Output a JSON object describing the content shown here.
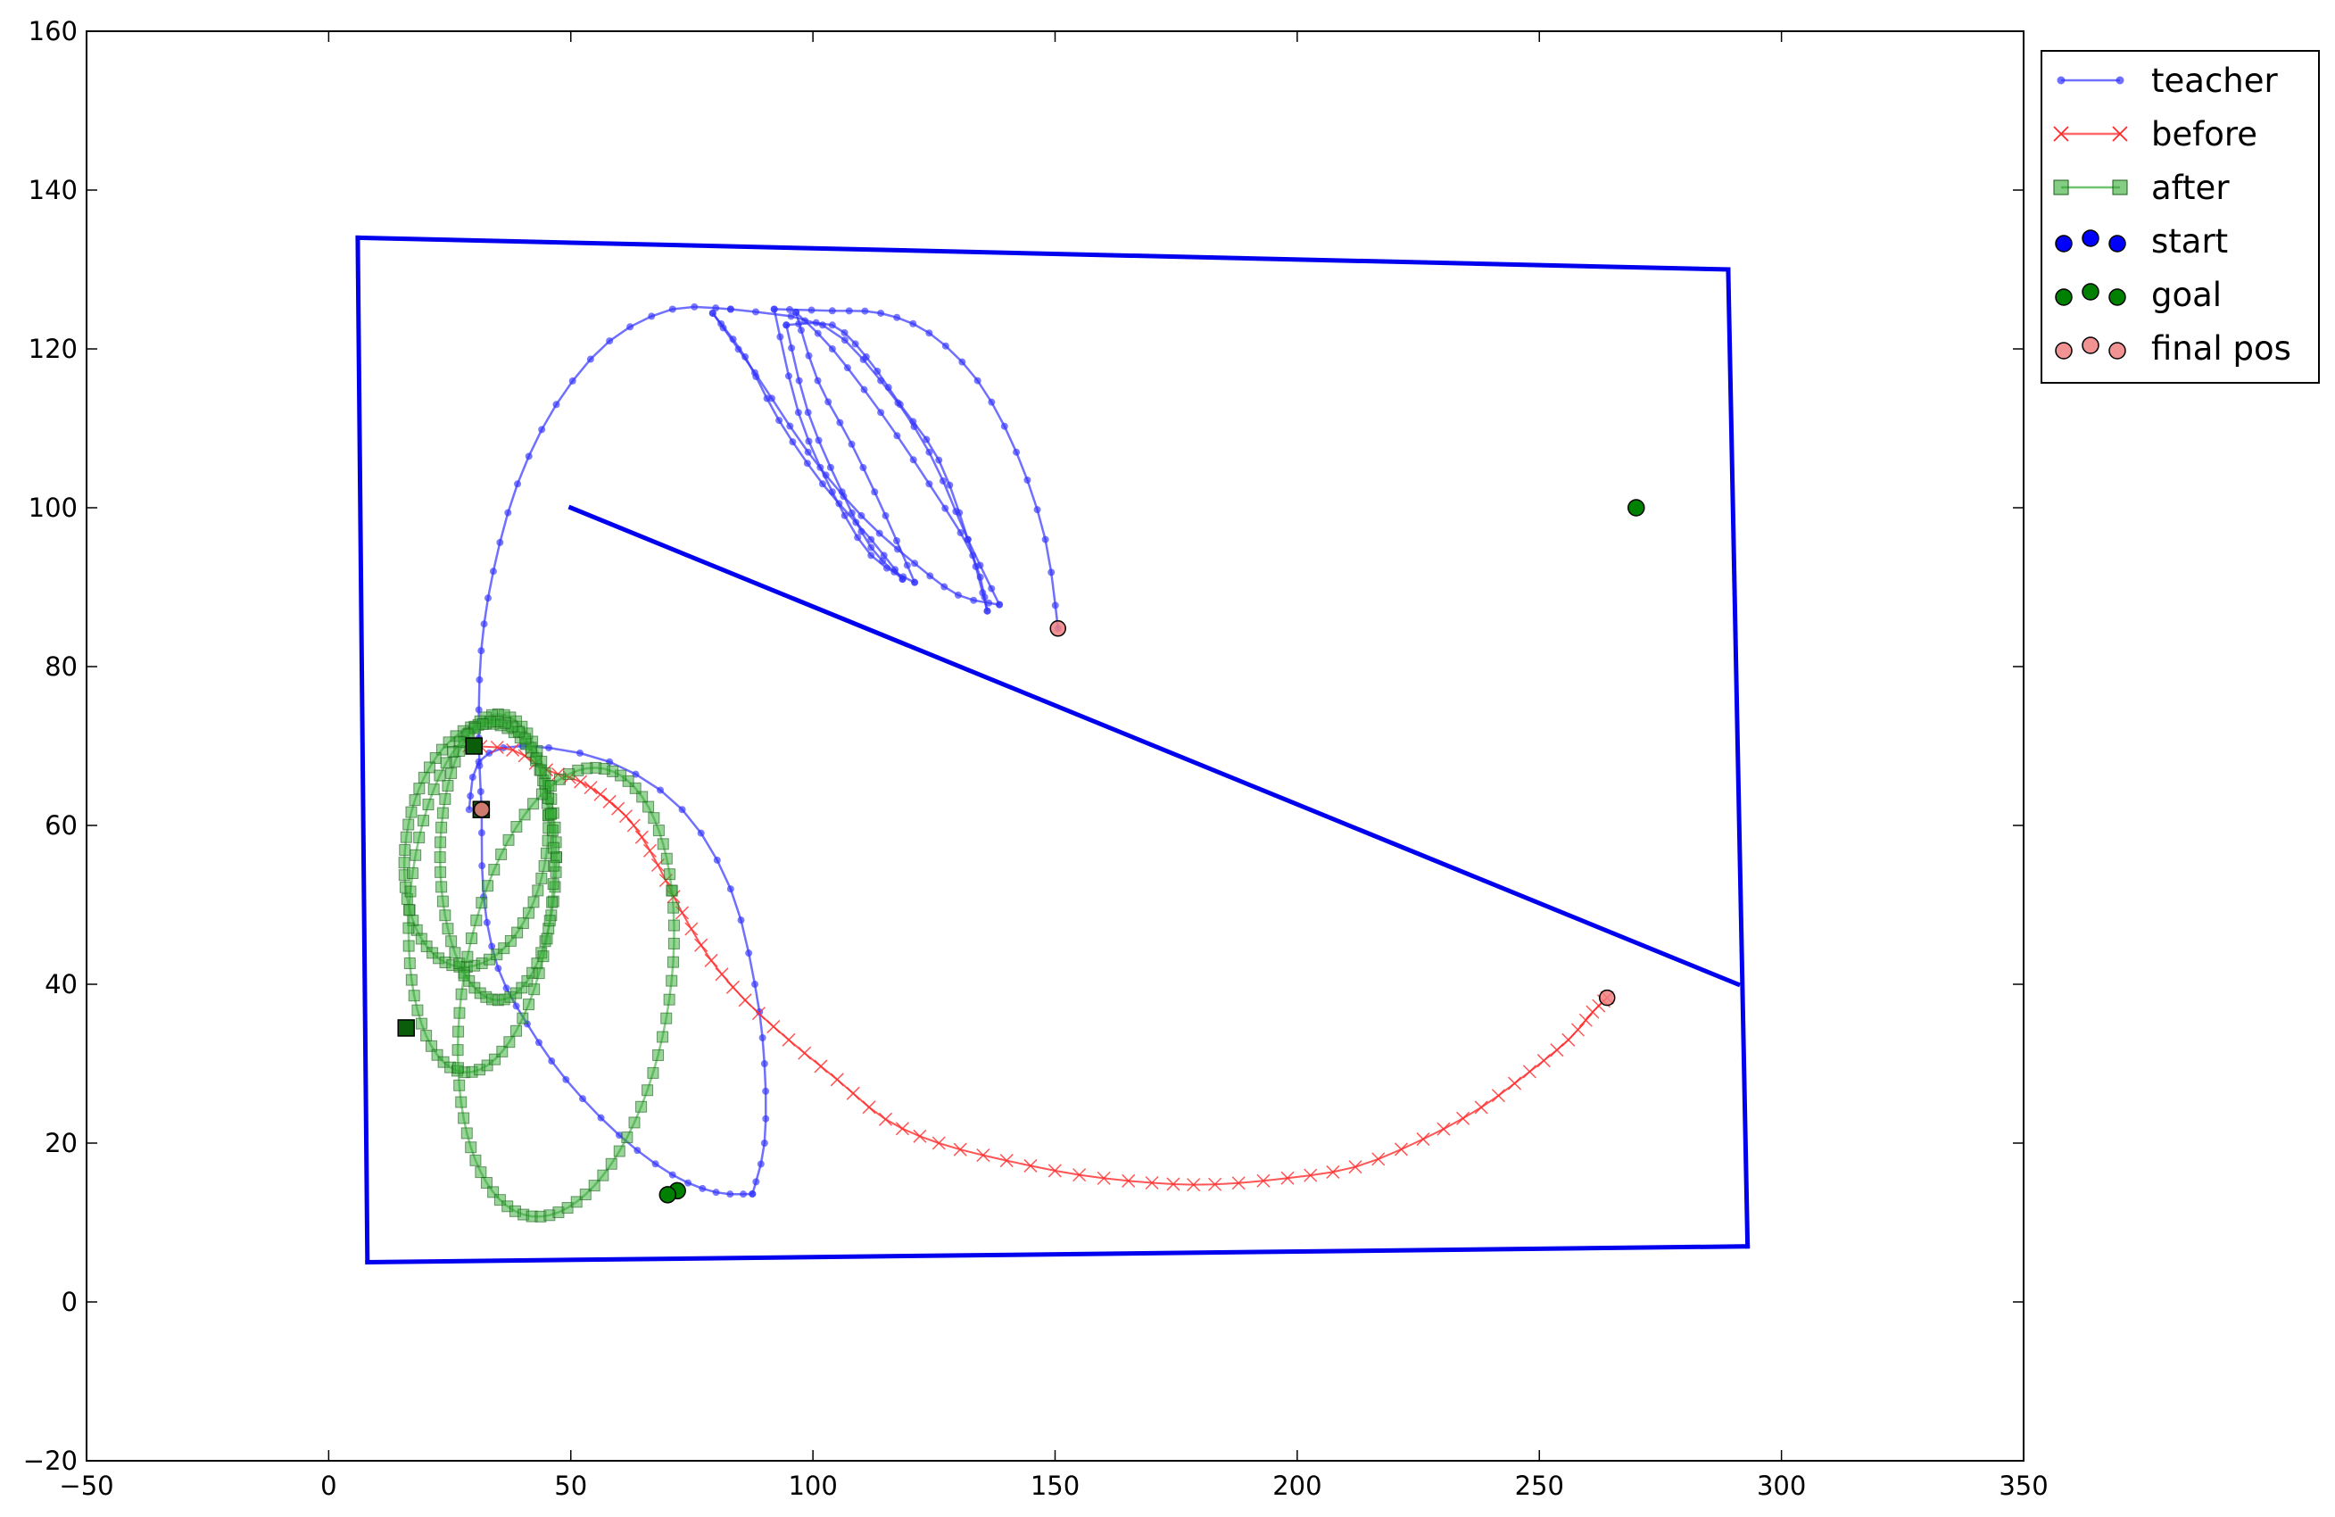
{
  "chart_data": {
    "type": "line",
    "xlim": [
      -50,
      350
    ],
    "ylim": [
      -20,
      160
    ],
    "xticks": [
      -50,
      0,
      50,
      100,
      150,
      200,
      250,
      300,
      350
    ],
    "yticks": [
      -20,
      0,
      20,
      40,
      60,
      80,
      100,
      120,
      140,
      160
    ],
    "grid": false,
    "legend_placement": "outside-top-right",
    "colors": {
      "walls": "#0000ee",
      "teacher": "#3333ff",
      "before": "#ff2a2a",
      "after": "#33aa33",
      "start": "#0000ff",
      "goal": "#008000",
      "final_pos": "#f08080"
    },
    "legend": [
      {
        "key": "teacher",
        "label": "teacher"
      },
      {
        "key": "before",
        "label": "before"
      },
      {
        "key": "after",
        "label": "after"
      },
      {
        "key": "start",
        "label": "start"
      },
      {
        "key": "goal",
        "label": "goal"
      },
      {
        "key": "final_pos",
        "label": "final pos"
      }
    ],
    "walls": [
      [
        [
          6,
          134
        ],
        [
          289,
          130
        ]
      ],
      [
        [
          289,
          130
        ],
        [
          293,
          7
        ]
      ],
      [
        [
          293,
          7
        ],
        [
          8,
          5
        ]
      ],
      [
        [
          8,
          5
        ],
        [
          6,
          134
        ]
      ],
      [
        [
          50,
          100
        ],
        [
          291,
          40
        ]
      ]
    ],
    "teacher": [
      [
        [
          150.6,
          84.8
        ],
        [
          148,
          96
        ],
        [
          142,
          107
        ],
        [
          134,
          116
        ],
        [
          124,
          122
        ],
        [
          114,
          124.5
        ],
        [
          104,
          124.8
        ],
        [
          92,
          125
        ]
      ],
      [
        [
          92,
          125
        ],
        [
          97,
          112
        ],
        [
          104,
          102
        ],
        [
          112,
          94
        ],
        [
          121,
          90.6
        ]
      ],
      [
        [
          121,
          90.6
        ],
        [
          115,
          99
        ],
        [
          108,
          108
        ],
        [
          101,
          116
        ],
        [
          96.5,
          124.6
        ]
      ],
      [
        [
          96.5,
          124.6
        ],
        [
          104,
          120
        ],
        [
          114,
          112
        ],
        [
          124,
          103
        ],
        [
          133,
          94
        ],
        [
          136,
          87
        ]
      ],
      [
        [
          136,
          87
        ],
        [
          132,
          96
        ],
        [
          126,
          106
        ],
        [
          118,
          113
        ],
        [
          111,
          119
        ],
        [
          104,
          123
        ],
        [
          94.5,
          123
        ]
      ],
      [
        [
          94.5,
          123
        ],
        [
          99,
          112
        ],
        [
          106,
          102
        ],
        [
          112,
          95
        ],
        [
          118.5,
          91
        ]
      ],
      [
        [
          118.5,
          91
        ],
        [
          112,
          96
        ],
        [
          102,
          103
        ],
        [
          93,
          111
        ],
        [
          86,
          119
        ],
        [
          79.3,
          124.5
        ]
      ],
      [
        [
          79.3,
          124.5
        ],
        [
          88,
          117
        ],
        [
          99,
          107
        ],
        [
          110,
          99
        ],
        [
          121,
          93
        ],
        [
          130,
          89
        ],
        [
          138.5,
          87.8
        ]
      ],
      [
        [
          138.5,
          87.8
        ],
        [
          132,
          96
        ],
        [
          124,
          107
        ],
        [
          114,
          116
        ],
        [
          102,
          123
        ],
        [
          83,
          125
        ]
      ],
      [
        [
          83,
          125
        ],
        [
          71,
          125
        ],
        [
          58,
          121
        ],
        [
          47,
          113
        ],
        [
          39,
          103
        ],
        [
          34,
          92
        ],
        [
          31.5,
          82
        ],
        [
          31,
          71
        ],
        [
          31.6,
          62
        ]
      ],
      [
        [
          31.6,
          62
        ],
        [
          32,
          51
        ],
        [
          35,
          42
        ],
        [
          41,
          35
        ],
        [
          49,
          28
        ],
        [
          60,
          21
        ],
        [
          71,
          16
        ],
        [
          80,
          13.8
        ],
        [
          87.5,
          13.6
        ]
      ],
      [
        [
          87.5,
          13.6
        ],
        [
          90,
          20
        ],
        [
          90,
          30
        ],
        [
          88,
          40
        ],
        [
          83,
          52
        ],
        [
          73,
          62
        ],
        [
          58,
          68
        ],
        [
          40,
          70
        ],
        [
          31,
          68
        ],
        [
          29,
          62
        ]
      ]
    ],
    "before": [
      [
        29,
        70
      ],
      [
        38,
        69.5
      ],
      [
        45,
        67
      ],
      [
        52,
        65.5
      ],
      [
        58,
        63
      ],
      [
        63,
        60
      ],
      [
        68,
        55
      ],
      [
        73,
        49
      ],
      [
        79,
        43
      ],
      [
        86,
        38
      ],
      [
        95,
        33
      ],
      [
        105,
        28
      ],
      [
        115,
        23
      ],
      [
        126,
        20
      ],
      [
        140,
        17.8
      ],
      [
        155,
        16
      ],
      [
        170,
        15
      ],
      [
        183,
        14.8
      ],
      [
        198,
        15.6
      ],
      [
        212,
        17
      ],
      [
        226,
        20.5
      ],
      [
        238,
        24.5
      ],
      [
        248,
        29
      ],
      [
        256,
        33
      ],
      [
        261,
        36.5
      ],
      [
        264,
        38.3
      ]
    ],
    "after": [
      {
        "cx": 30.5,
        "cy": 57.5,
        "rx": 15,
        "ry": 15,
        "rot": 8,
        "n": 60
      },
      {
        "cx": 35,
        "cy": 56,
        "rx": 12,
        "ry": 18,
        "rot": 0,
        "n": 60
      },
      {
        "cx": 31.5,
        "cy": 51,
        "rx": 15.5,
        "ry": 21,
        "rot": 22,
        "n": 60
      },
      {
        "cx": 49,
        "cy": 39,
        "rx": 23,
        "ry": 26.5,
        "rot": 18,
        "n": 75
      }
    ],
    "start": [
      [
        16,
        34.5
      ],
      [
        30,
        70
      ],
      [
        31.5,
        62
      ]
    ],
    "goal": [
      [
        270,
        100
      ],
      [
        72,
        14
      ],
      [
        70,
        13.5
      ]
    ],
    "final_pos": [
      [
        150.6,
        84.8
      ],
      [
        264,
        38.3
      ],
      [
        31.6,
        62
      ]
    ]
  }
}
